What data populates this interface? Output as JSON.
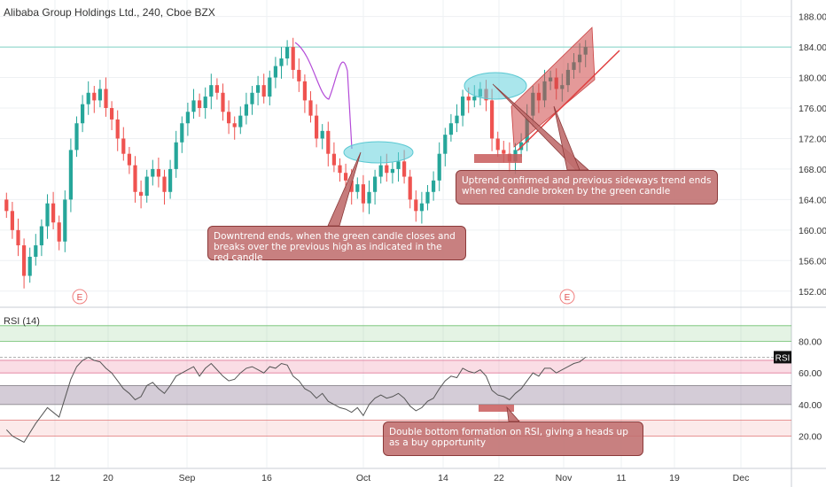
{
  "header": {
    "title": "Alibaba Group Holdings Ltd., 240, Cboe BZX"
  },
  "rsi": {
    "label": "RSI (14)",
    "badge": "RSI"
  },
  "colors": {
    "up": "#26a69a",
    "down": "#ef5350",
    "rsi_line": "#555555",
    "annotation": "#c06e6e"
  },
  "annotations": {
    "downtrend": "Downtrend ends, when the green candle closes and breaks over the previous high as indicated in the red candle",
    "uptrend": "Uptrend confirmed and previous sideways trend ends when red candle broken by the green candle",
    "rsi": "Double bottom formation on RSI, giving a heads up as a buy opportunity"
  },
  "chart_data": {
    "type": "candlestick",
    "symbol": "Alibaba Group Holdings Ltd., 240, Cboe BZX",
    "price_axis": {
      "range": [
        150,
        189
      ],
      "ticks": [
        152.0,
        156.0,
        160.0,
        164.0,
        168.0,
        172.0,
        176.0,
        180.0,
        184.0,
        188.0
      ],
      "current": 184.0
    },
    "x_ticks": [
      "12",
      "20",
      "Sep",
      "16",
      "Oct",
      "14",
      "22",
      "Nov",
      "11",
      "19",
      "Dec"
    ],
    "earnings_markers": [
      "E",
      "E"
    ],
    "close_series": [
      162.5,
      160.0,
      158.0,
      154.0,
      156.5,
      158.0,
      160.5,
      163.5,
      161.0,
      158.5,
      164.0,
      170.5,
      174.0,
      176.5,
      178.0,
      177.0,
      178.5,
      176.0,
      174.5,
      172.0,
      170.0,
      168.5,
      165.0,
      164.5,
      167.0,
      168.0,
      167.0,
      165.0,
      168.0,
      171.5,
      174.0,
      175.5,
      177.0,
      176.0,
      177.5,
      179.0,
      178.0,
      175.5,
      174.0,
      173.5,
      175.0,
      176.5,
      178.0,
      179.0,
      177.5,
      180.0,
      181.5,
      182.5,
      184.0,
      181.0,
      179.5,
      177.0,
      175.0,
      172.0,
      173.0,
      170.0,
      168.5,
      167.5,
      166.5,
      165.0,
      166.0,
      163.5,
      165.0,
      167.0,
      168.5,
      167.5,
      168.0,
      169.0,
      167.0,
      164.0,
      162.5,
      163.5,
      165.0,
      166.5,
      170.0,
      172.5,
      174.0,
      175.0,
      177.5,
      177.0,
      177.5,
      178.5,
      177.0,
      172.0,
      170.5,
      170.0,
      169.0,
      170.5,
      171.5,
      175.0,
      178.0,
      177.0,
      179.5,
      180.0,
      178.5,
      179.0,
      181.0,
      182.0,
      183.0,
      184.0
    ],
    "rsi": {
      "period": 14,
      "axis_ticks": [
        20.0,
        40.0,
        60.0,
        80.0
      ],
      "bands": [
        [
          80,
          90
        ],
        [
          60,
          68
        ],
        [
          40,
          52
        ],
        [
          20,
          30
        ]
      ],
      "values": [
        24,
        20,
        18,
        16,
        22,
        28,
        33,
        38,
        35,
        32,
        44,
        56,
        64,
        68,
        70,
        68,
        67,
        63,
        60,
        55,
        50,
        47,
        43,
        45,
        52,
        54,
        50,
        47,
        52,
        58,
        60,
        62,
        64,
        58,
        63,
        66,
        62,
        58,
        55,
        56,
        60,
        63,
        64,
        62,
        60,
        64,
        63,
        66,
        65,
        58,
        55,
        50,
        48,
        44,
        47,
        42,
        40,
        38,
        37,
        35,
        38,
        33,
        40,
        44,
        46,
        44,
        45,
        47,
        44,
        39,
        36,
        38,
        42,
        44,
        50,
        55,
        58,
        57,
        63,
        61,
        60,
        62,
        58,
        49,
        46,
        45,
        43,
        47,
        50,
        55,
        60,
        58,
        63,
        63,
        60,
        62,
        64,
        66,
        67,
        70
      ]
    }
  }
}
